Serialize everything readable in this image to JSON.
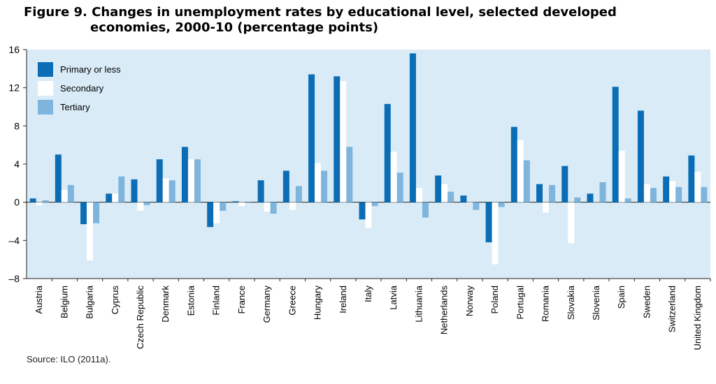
{
  "title_line1": "Figure 9. Changes in unemployment rates by educational level, selected developed",
  "title_line2": "economies, 2000-10 (percentage points)",
  "source": "Source: ILO (2011a).",
  "colors": {
    "primary": "#0a6db5",
    "secondary": "#ffffff",
    "tertiary": "#7fb5dd",
    "plot_bg": "#d9ebf6"
  },
  "chart_data": {
    "type": "bar",
    "categories": [
      "Austria",
      "Belgium",
      "Bulgaria",
      "Cyprus",
      "Czech Republic",
      "Denmark",
      "Estonia",
      "Finland",
      "France",
      "Germany",
      "Greece",
      "Hungary",
      "Ireland",
      "Italy",
      "Latvia",
      "Lithuania",
      "Netherlands",
      "Norway",
      "Poland",
      "Portugal",
      "Romania",
      "Slovakia",
      "Slovenia",
      "Spain",
      "Sweden",
      "Switzerland",
      "United Kingdom"
    ],
    "series": [
      {
        "name": "Primary or less",
        "values": [
          0.4,
          5.0,
          -2.3,
          0.9,
          2.4,
          4.5,
          5.8,
          -2.6,
          0.1,
          2.3,
          3.3,
          13.4,
          13.2,
          -1.8,
          10.3,
          15.6,
          2.8,
          0.7,
          -4.2,
          7.9,
          1.9,
          3.8,
          0.9,
          12.1,
          9.6,
          2.7,
          4.9
        ]
      },
      {
        "name": "Secondary",
        "values": [
          -0.3,
          1.3,
          -6.1,
          0.9,
          -0.9,
          2.5,
          4.5,
          -2.2,
          -0.4,
          -1.0,
          -0.8,
          4.1,
          12.7,
          -2.7,
          5.3,
          1.5,
          1.9,
          -0.1,
          -6.5,
          6.5,
          -1.1,
          -4.3,
          0.0,
          5.4,
          1.9,
          2.2,
          3.2
        ]
      },
      {
        "name": "Tertiary",
        "values": [
          0.2,
          1.8,
          -2.2,
          2.7,
          -0.3,
          2.3,
          4.5,
          -0.9,
          0.0,
          -1.2,
          1.7,
          3.3,
          5.8,
          -0.4,
          3.1,
          -1.6,
          1.1,
          -0.8,
          -0.5,
          4.4,
          1.8,
          0.5,
          2.1,
          0.4,
          1.5,
          1.6,
          1.6
        ]
      }
    ],
    "ylim": [
      -8,
      16
    ],
    "yticks": [
      -8,
      -4,
      0,
      4,
      8,
      12,
      16
    ],
    "ytick_labels": [
      "–8",
      "–4",
      "0",
      "4",
      "8",
      "12",
      "16"
    ],
    "legend_position": "top-left",
    "grid": false
  }
}
